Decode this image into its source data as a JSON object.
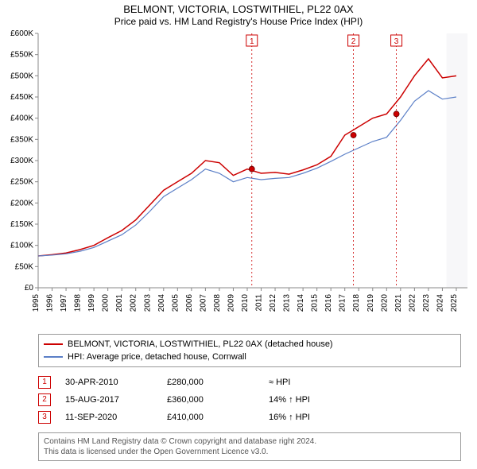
{
  "title": {
    "main": "BELMONT, VICTORIA, LOSTWITHIEL, PL22 0AX",
    "sub": "Price paid vs. HM Land Registry's House Price Index (HPI)"
  },
  "chart": {
    "type": "line",
    "background_color": "#ffffff",
    "plot_bg_band_color": "#f7f7f9",
    "axis_color": "#888888",
    "tick_color": "#888888",
    "font_size_tick": 10,
    "x": {
      "min": 1995,
      "max": 2025.8,
      "ticks": [
        1995,
        1996,
        1997,
        1998,
        1999,
        2000,
        2001,
        2002,
        2003,
        2004,
        2005,
        2006,
        2007,
        2008,
        2009,
        2010,
        2011,
        2012,
        2013,
        2014,
        2015,
        2016,
        2017,
        2018,
        2019,
        2020,
        2021,
        2022,
        2023,
        2024,
        2025
      ]
    },
    "y": {
      "min": 0,
      "max": 600000,
      "tick_step": 50000,
      "prefix": "£",
      "suffix": "K",
      "divisor": 1000
    },
    "series": [
      {
        "name": "BELMONT, VICTORIA, LOSTWITHIEL, PL22 0AX (detached house)",
        "color": "#cc0000",
        "width": 1.5,
        "points": [
          [
            1995,
            75000
          ],
          [
            1996,
            78000
          ],
          [
            1997,
            82000
          ],
          [
            1998,
            90000
          ],
          [
            1999,
            100000
          ],
          [
            2000,
            118000
          ],
          [
            2001,
            135000
          ],
          [
            2002,
            160000
          ],
          [
            2003,
            195000
          ],
          [
            2004,
            230000
          ],
          [
            2005,
            250000
          ],
          [
            2006,
            270000
          ],
          [
            2007,
            300000
          ],
          [
            2008,
            295000
          ],
          [
            2009,
            265000
          ],
          [
            2010,
            280000
          ],
          [
            2011,
            270000
          ],
          [
            2012,
            272000
          ],
          [
            2013,
            268000
          ],
          [
            2014,
            278000
          ],
          [
            2015,
            290000
          ],
          [
            2016,
            310000
          ],
          [
            2017,
            360000
          ],
          [
            2018,
            380000
          ],
          [
            2019,
            400000
          ],
          [
            2020,
            410000
          ],
          [
            2021,
            450000
          ],
          [
            2022,
            500000
          ],
          [
            2023,
            540000
          ],
          [
            2024,
            495000
          ],
          [
            2025,
            500000
          ]
        ]
      },
      {
        "name": "HPI: Average price, detached house, Cornwall",
        "color": "#5b7fc7",
        "width": 1.2,
        "points": [
          [
            1995,
            75000
          ],
          [
            1996,
            77000
          ],
          [
            1997,
            80000
          ],
          [
            1998,
            86000
          ],
          [
            1999,
            95000
          ],
          [
            2000,
            110000
          ],
          [
            2001,
            125000
          ],
          [
            2002,
            148000
          ],
          [
            2003,
            180000
          ],
          [
            2004,
            215000
          ],
          [
            2005,
            235000
          ],
          [
            2006,
            255000
          ],
          [
            2007,
            280000
          ],
          [
            2008,
            270000
          ],
          [
            2009,
            250000
          ],
          [
            2010,
            260000
          ],
          [
            2011,
            255000
          ],
          [
            2012,
            258000
          ],
          [
            2013,
            260000
          ],
          [
            2014,
            270000
          ],
          [
            2015,
            282000
          ],
          [
            2016,
            298000
          ],
          [
            2017,
            315000
          ],
          [
            2018,
            330000
          ],
          [
            2019,
            345000
          ],
          [
            2020,
            355000
          ],
          [
            2021,
            395000
          ],
          [
            2022,
            440000
          ],
          [
            2023,
            465000
          ],
          [
            2024,
            445000
          ],
          [
            2025,
            450000
          ]
        ]
      }
    ],
    "sale_markers": [
      {
        "n": "1",
        "x": 2010.33,
        "y": 280000,
        "dotted_color": "#cc0000"
      },
      {
        "n": "2",
        "x": 2017.62,
        "y": 360000,
        "dotted_color": "#cc0000"
      },
      {
        "n": "3",
        "x": 2020.7,
        "y": 410000,
        "dotted_color": "#cc0000"
      }
    ],
    "sale_dot": {
      "radius": 3.5,
      "fill": "#cc0000",
      "stroke": "#660000"
    },
    "marker_box": {
      "size": 14,
      "border": "#cc0000",
      "text": "#cc0000",
      "fill": "#ffffff"
    }
  },
  "legend": {
    "items": [
      {
        "color": "#cc0000",
        "label": "BELMONT, VICTORIA, LOSTWITHIEL, PL22 0AX (detached house)"
      },
      {
        "color": "#5b7fc7",
        "label": "HPI: Average price, detached house, Cornwall"
      }
    ]
  },
  "sales": [
    {
      "n": "1",
      "date": "30-APR-2010",
      "price": "£280,000",
      "delta": "≈ HPI"
    },
    {
      "n": "2",
      "date": "15-AUG-2017",
      "price": "£360,000",
      "delta": "14% ↑ HPI"
    },
    {
      "n": "3",
      "date": "11-SEP-2020",
      "price": "£410,000",
      "delta": "16% ↑ HPI"
    }
  ],
  "footer": {
    "line1": "Contains HM Land Registry data © Crown copyright and database right 2024.",
    "line2": "This data is licensed under the Open Government Licence v3.0."
  }
}
